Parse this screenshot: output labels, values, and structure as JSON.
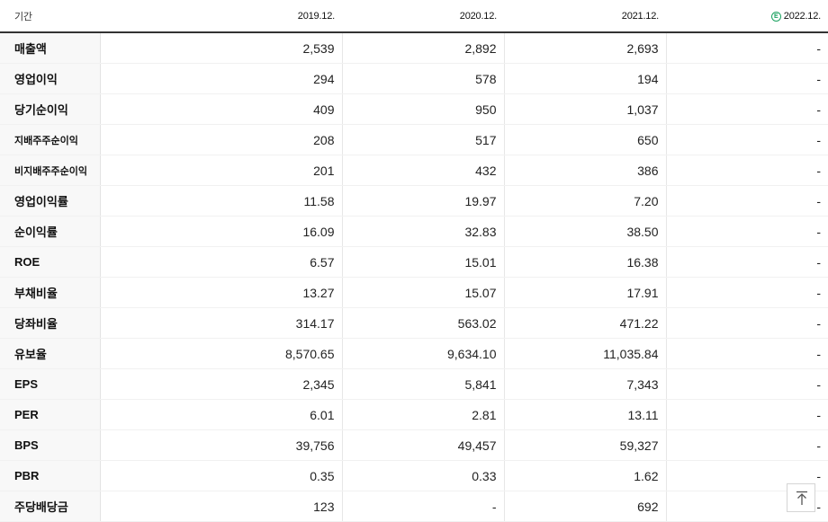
{
  "header": {
    "period_label": "기간",
    "years": [
      "2019.12.",
      "2020.12.",
      "2021.12.",
      "2022.12."
    ],
    "estimate_icon": "circled-e-icon",
    "estimate_color": "#1aa260"
  },
  "rows": [
    {
      "label": "매출액",
      "values": [
        "2,539",
        "2,892",
        "2,693",
        "-"
      ]
    },
    {
      "label": "영업이익",
      "values": [
        "294",
        "578",
        "194",
        "-"
      ]
    },
    {
      "label": "당기순이익",
      "values": [
        "409",
        "950",
        "1,037",
        "-"
      ]
    },
    {
      "label": "지배주주순이익",
      "values": [
        "208",
        "517",
        "650",
        "-"
      ]
    },
    {
      "label": "비지배주주순이익",
      "values": [
        "201",
        "432",
        "386",
        "-"
      ]
    },
    {
      "label": "영업이익률",
      "values": [
        "11.58",
        "19.97",
        "7.20",
        "-"
      ]
    },
    {
      "label": "순이익률",
      "values": [
        "16.09",
        "32.83",
        "38.50",
        "-"
      ]
    },
    {
      "label": "ROE",
      "values": [
        "6.57",
        "15.01",
        "16.38",
        "-"
      ]
    },
    {
      "label": "부채비율",
      "values": [
        "13.27",
        "15.07",
        "17.91",
        "-"
      ]
    },
    {
      "label": "당좌비율",
      "values": [
        "314.17",
        "563.02",
        "471.22",
        "-"
      ]
    },
    {
      "label": "유보율",
      "values": [
        "8,570.65",
        "9,634.10",
        "11,035.84",
        "-"
      ]
    },
    {
      "label": "EPS",
      "values": [
        "2,345",
        "5,841",
        "7,343",
        "-"
      ]
    },
    {
      "label": "PER",
      "values": [
        "6.01",
        "2.81",
        "13.11",
        "-"
      ]
    },
    {
      "label": "BPS",
      "values": [
        "39,756",
        "49,457",
        "59,327",
        "-"
      ]
    },
    {
      "label": "PBR",
      "values": [
        "0.35",
        "0.33",
        "1.62",
        "-"
      ]
    },
    {
      "label": "주당배당금",
      "values": [
        "123",
        "-",
        "692",
        "-"
      ]
    }
  ],
  "scroll_top_icon": "arrow-up-to-top-icon"
}
